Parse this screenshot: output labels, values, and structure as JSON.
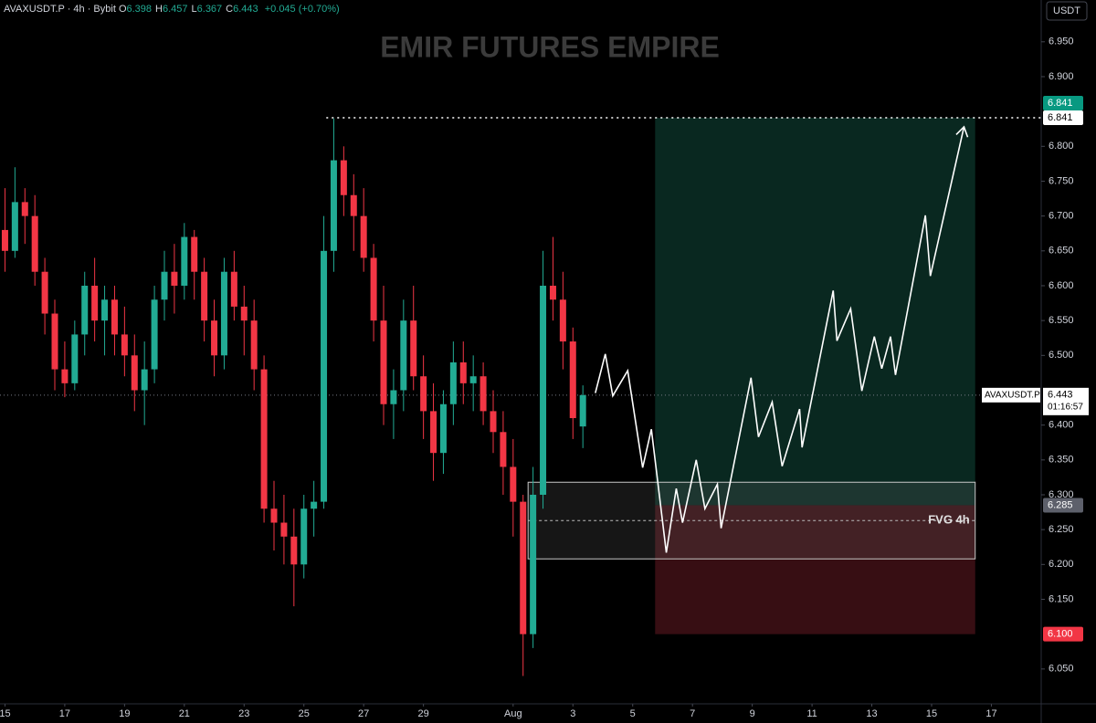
{
  "header": {
    "symbol": "AVAXUSDT.P · 4h · Bybit",
    "ohlc": [
      {
        "label": "O",
        "value": "6.398"
      },
      {
        "label": "H",
        "value": "6.457"
      },
      {
        "label": "L",
        "value": "6.367"
      },
      {
        "label": "C",
        "value": "6.443"
      }
    ],
    "change": "+0.045 (+0.70%)"
  },
  "chart_data": {
    "type": "candlestick",
    "title": "EMIR FUTURES EMPIRE",
    "currency": "USDT",
    "x": [
      0,
      8,
      16,
      24,
      32,
      40,
      48,
      56,
      64,
      72,
      80,
      88,
      96,
      104,
      112,
      120,
      128,
      136,
      144,
      152,
      160,
      168,
      176,
      184,
      192,
      200,
      208,
      216,
      224,
      232,
      240,
      248,
      256,
      264,
      272,
      280,
      288,
      296,
      304,
      312,
      320,
      328,
      336,
      344,
      352,
      360,
      368,
      376,
      384,
      392,
      400,
      408,
      416,
      424,
      432,
      440,
      448,
      456,
      464
    ],
    "open": [
      6.68,
      6.65,
      6.72,
      6.7,
      6.62,
      6.56,
      6.48,
      6.46,
      6.53,
      6.6,
      6.55,
      6.58,
      6.53,
      6.5,
      6.45,
      6.48,
      6.58,
      6.62,
      6.6,
      6.67,
      6.62,
      6.55,
      6.5,
      6.62,
      6.57,
      6.55,
      6.48,
      6.28,
      6.26,
      6.24,
      6.2,
      6.28,
      6.29,
      6.65,
      6.78,
      6.73,
      6.7,
      6.64,
      6.55,
      6.43,
      6.45,
      6.55,
      6.47,
      6.42,
      6.36,
      6.43,
      6.49,
      6.46,
      6.47,
      6.42,
      6.39,
      6.34,
      6.29,
      6.1,
      6.3,
      6.6,
      6.58,
      6.52,
      6.398
    ],
    "high": [
      6.74,
      6.77,
      6.74,
      6.73,
      6.64,
      6.58,
      6.52,
      6.55,
      6.62,
      6.64,
      6.6,
      6.6,
      6.57,
      6.53,
      6.52,
      6.6,
      6.65,
      6.66,
      6.69,
      6.68,
      6.64,
      6.58,
      6.64,
      6.65,
      6.6,
      6.58,
      6.5,
      6.32,
      6.3,
      6.28,
      6.3,
      6.32,
      6.7,
      6.84,
      6.8,
      6.76,
      6.74,
      6.66,
      6.6,
      6.48,
      6.58,
      6.6,
      6.5,
      6.46,
      6.45,
      6.52,
      6.52,
      6.5,
      6.49,
      6.45,
      6.42,
      6.38,
      6.3,
      6.34,
      6.65,
      6.67,
      6.62,
      6.54,
      6.457
    ],
    "low": [
      6.62,
      6.64,
      6.66,
      6.6,
      6.53,
      6.45,
      6.44,
      6.45,
      6.5,
      6.52,
      6.5,
      6.5,
      6.47,
      6.42,
      6.4,
      6.46,
      6.55,
      6.56,
      6.58,
      6.58,
      6.52,
      6.47,
      6.48,
      6.55,
      6.5,
      6.45,
      6.26,
      6.22,
      6.2,
      6.14,
      6.18,
      6.24,
      6.28,
      6.62,
      6.7,
      6.65,
      6.62,
      6.52,
      6.4,
      6.38,
      6.42,
      6.45,
      6.38,
      6.32,
      6.33,
      6.4,
      6.43,
      6.42,
      6.4,
      6.36,
      6.3,
      6.24,
      6.04,
      6.08,
      6.28,
      6.55,
      6.48,
      6.38,
      6.367
    ],
    "close": [
      6.65,
      6.72,
      6.7,
      6.62,
      6.56,
      6.48,
      6.46,
      6.53,
      6.6,
      6.55,
      6.58,
      6.53,
      6.5,
      6.45,
      6.48,
      6.58,
      6.62,
      6.6,
      6.67,
      6.62,
      6.55,
      6.5,
      6.62,
      6.57,
      6.55,
      6.48,
      6.28,
      6.26,
      6.24,
      6.2,
      6.28,
      6.29,
      6.65,
      6.78,
      6.73,
      6.7,
      6.64,
      6.55,
      6.43,
      6.45,
      6.55,
      6.47,
      6.42,
      6.36,
      6.43,
      6.49,
      6.46,
      6.47,
      6.42,
      6.39,
      6.34,
      6.29,
      6.1,
      6.3,
      6.6,
      6.58,
      6.52,
      6.41,
      6.443
    ],
    "up_color": "#22ab94",
    "down_color": "#f23645",
    "xlim": [
      -4,
      832
    ],
    "xticks": [
      {
        "value": 0,
        "label": "15"
      },
      {
        "value": 48,
        "label": "17"
      },
      {
        "value": 96,
        "label": "19"
      },
      {
        "value": 144,
        "label": "21"
      },
      {
        "value": 192,
        "label": "23"
      },
      {
        "value": 240,
        "label": "25"
      },
      {
        "value": 288,
        "label": "27"
      },
      {
        "value": 336,
        "label": "29"
      },
      {
        "value": 408,
        "label": "Aug"
      },
      {
        "value": 456,
        "label": "3"
      },
      {
        "value": 504,
        "label": "5"
      },
      {
        "value": 552,
        "label": "7"
      },
      {
        "value": 600,
        "label": "9"
      },
      {
        "value": 648,
        "label": "11"
      },
      {
        "value": 696,
        "label": "13"
      },
      {
        "value": 744,
        "label": "15"
      },
      {
        "value": 792,
        "label": "17"
      }
    ],
    "ylim": [
      6.0,
      7.01
    ],
    "yticks": [
      {
        "value": 6.05,
        "label": "6.050"
      },
      {
        "value": 6.15,
        "label": "6.150"
      },
      {
        "value": 6.2,
        "label": "6.200"
      },
      {
        "value": 6.25,
        "label": "6.250"
      },
      {
        "value": 6.3,
        "label": "6.300"
      },
      {
        "value": 6.35,
        "label": "6.350"
      },
      {
        "value": 6.4,
        "label": "6.400"
      },
      {
        "value": 6.5,
        "label": "6.500"
      },
      {
        "value": 6.55,
        "label": "6.550"
      },
      {
        "value": 6.6,
        "label": "6.600"
      },
      {
        "value": 6.65,
        "label": "6.650"
      },
      {
        "value": 6.7,
        "label": "6.700"
      },
      {
        "value": 6.75,
        "label": "6.750"
      },
      {
        "value": 6.8,
        "label": "6.800"
      },
      {
        "value": 6.9,
        "label": "6.900"
      },
      {
        "value": 6.95,
        "label": "6.950"
      }
    ],
    "grid": false,
    "position": {
      "start": 522,
      "end": 779,
      "entry": 6.285,
      "target": 6.841,
      "stop": 6.1
    },
    "fvg": {
      "label": "FVG 4h",
      "start": 420,
      "end": 779,
      "top": 6.318,
      "bottom": 6.208,
      "mid": 6.263
    },
    "alert_line": {
      "start": 258,
      "value": 6.841
    },
    "last_price": {
      "symbol": "AVAXUSDT.P",
      "value": 6.443,
      "countdown": "01:16:57"
    },
    "price_tags": [
      {
        "value": 6.841,
        "label": "6.841",
        "color": "#089981"
      },
      {
        "value": 6.841,
        "label": "6.841",
        "color": "#ffffff"
      },
      {
        "value": 6.285,
        "label": "6.285",
        "color": "#5d606b"
      },
      {
        "value": 6.1,
        "label": "6.100",
        "color": "#f23645"
      }
    ],
    "projection": {
      "x": [
        474,
        482,
        488,
        500,
        512,
        519,
        531,
        539,
        544,
        555,
        562,
        572,
        575,
        599,
        605,
        616,
        624,
        638,
        640,
        665,
        668,
        679,
        688,
        698,
        704,
        711,
        715,
        739,
        743,
        770
      ],
      "values": [
        6.446,
        6.502,
        6.442,
        6.478,
        6.339,
        6.394,
        6.217,
        6.309,
        6.26,
        6.35,
        6.28,
        6.315,
        6.252,
        6.468,
        6.383,
        6.433,
        6.341,
        6.423,
        6.368,
        6.593,
        6.521,
        6.567,
        6.449,
        6.527,
        6.481,
        6.527,
        6.472,
        6.701,
        6.614,
        6.828
      ],
      "color": "#ffffff"
    }
  }
}
